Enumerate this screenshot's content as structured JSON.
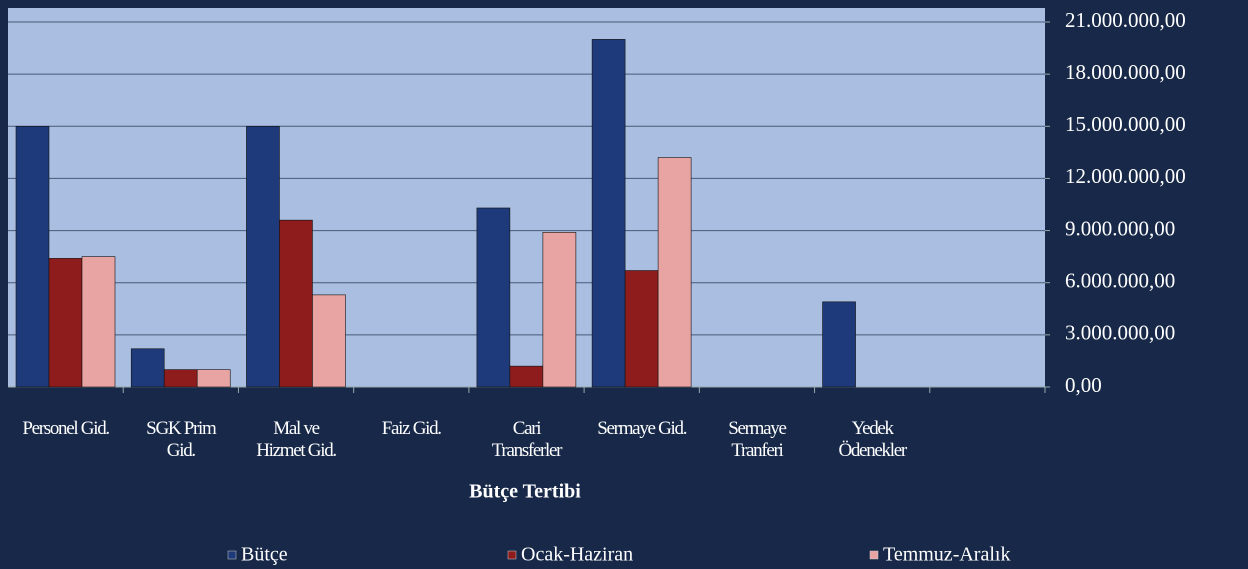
{
  "chart_data": {
    "type": "bar",
    "x_label": "Bütçe Tertibi",
    "categories": [
      "Personel Gid.",
      "SGK Prim\nGid.",
      "Mal ve\nHizmet Gid.",
      "Faiz Gid.",
      "Cari\nTransferler",
      "Sermaye Gid.",
      "Sermaye\nTranferi",
      "Yedek\nÖdenekler",
      null
    ],
    "series": [
      {
        "name": "Bütçe",
        "color": "#1e3a7a",
        "values": [
          15000000,
          2200000,
          15000000,
          null,
          10300000,
          20000000,
          null,
          4900000,
          null
        ]
      },
      {
        "name": "Ocak-Haziran",
        "color": "#8e1c1c",
        "values": [
          7400000,
          1000000,
          9600000,
          null,
          1200000,
          6700000,
          null,
          null,
          null
        ]
      },
      {
        "name": "Temmuz-Aralık",
        "color": "#e8a3a3",
        "values": [
          7500000,
          1000000,
          5300000,
          null,
          8900000,
          13200000,
          null,
          null,
          null
        ]
      }
    ],
    "ylim": [
      0,
      21000000
    ],
    "yticks": [
      {
        "value": 0,
        "label": "0,00"
      },
      {
        "value": 3000000,
        "label": "3.000.000,00"
      },
      {
        "value": 6000000,
        "label": "6.000.000,00"
      },
      {
        "value": 9000000,
        "label": "9.000.000,00"
      },
      {
        "value": 12000000,
        "label": "12.000.000,00"
      },
      {
        "value": 15000000,
        "label": "15.000.000,00"
      },
      {
        "value": 18000000,
        "label": "18.000.000,00"
      },
      {
        "value": 21000000,
        "label": "21.000.000,00"
      }
    ],
    "grid": true,
    "legend": "bottom"
  }
}
